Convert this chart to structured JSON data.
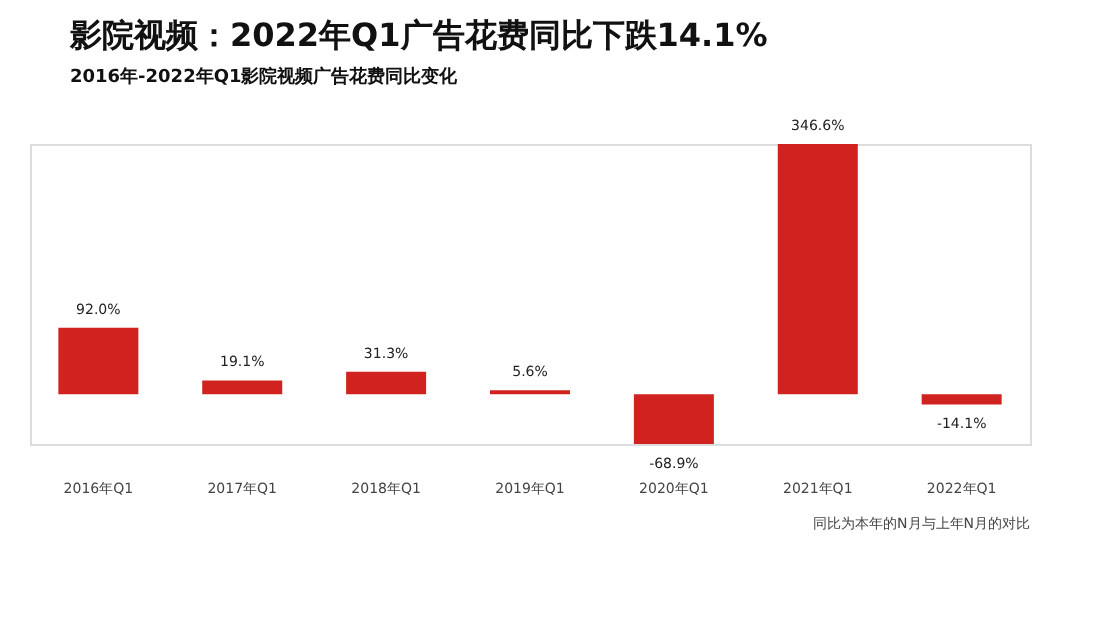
{
  "chart_data": {
    "type": "bar",
    "title": "影院视频：2022年Q1广告花费同比下跌14.1%",
    "subtitle": "2016年-2022年Q1影院视频广告花费同比变化",
    "categories": [
      "2016年Q1",
      "2017年Q1",
      "2018年Q1",
      "2019年Q1",
      "2020年Q1",
      "2021年Q1",
      "2022年Q1"
    ],
    "values": [
      92.0,
      19.1,
      31.3,
      5.6,
      -68.9,
      346.6,
      -14.1
    ],
    "value_labels": [
      "92.0%",
      "19.1%",
      "31.3%",
      "5.6%",
      "-68.9%",
      "346.6%",
      "-14.1%"
    ],
    "color": "#d0221e",
    "grid": false,
    "tick_labels": "x",
    "annotations": [
      "同比为本年的N月与上年N月的对比"
    ]
  }
}
